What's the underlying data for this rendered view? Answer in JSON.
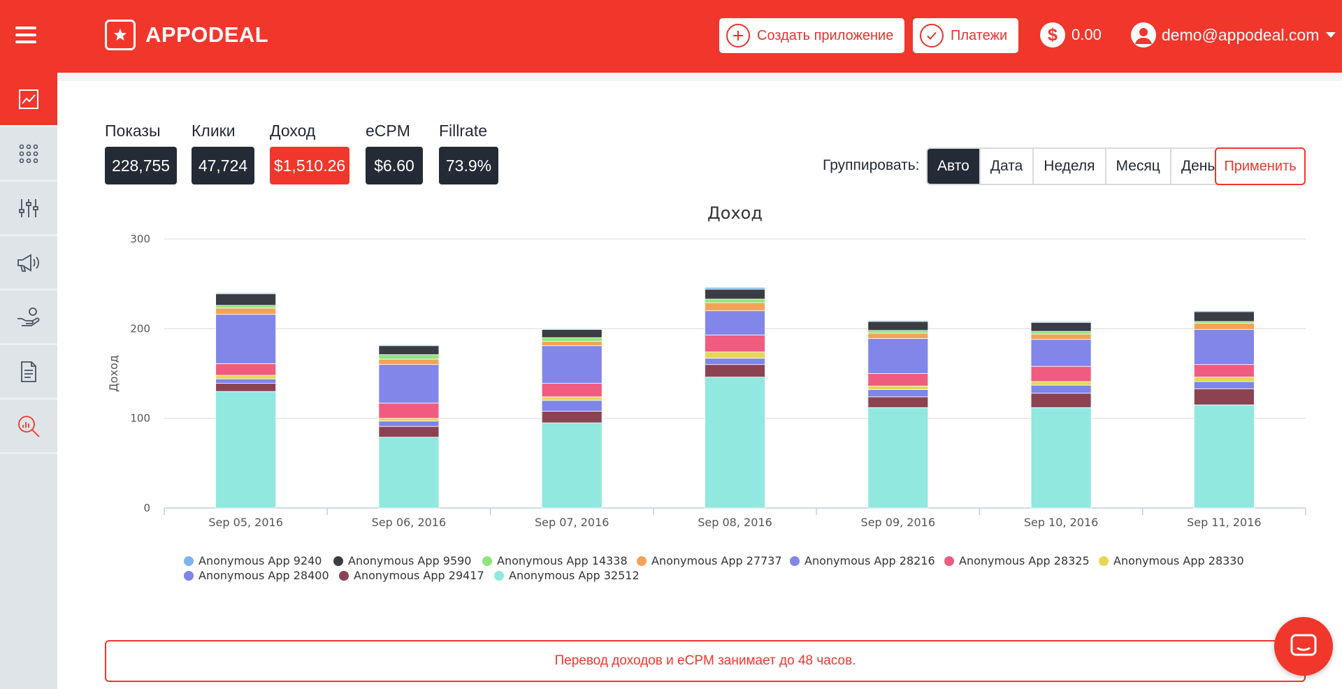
{
  "header": {
    "brand": "APPODEAL",
    "create_app_label": "Создать приложение",
    "payments_label": "Платежи",
    "balance": "0.00",
    "balance_symbol": "$",
    "user_email": "demo@appodeal.com"
  },
  "sidebar": {
    "items": [
      {
        "icon": "line-chart-icon",
        "active": true
      },
      {
        "icon": "apps-grid-icon"
      },
      {
        "icon": "sliders-icon"
      },
      {
        "icon": "megaphone-icon"
      },
      {
        "icon": "payout-hand-icon"
      },
      {
        "icon": "document-icon"
      },
      {
        "icon": "search-analytics-icon"
      }
    ]
  },
  "metrics": [
    {
      "label": "Показы",
      "value": "228,755"
    },
    {
      "label": "Клики",
      "value": "47,724"
    },
    {
      "label": "Доход",
      "value": "$1,510.26"
    },
    {
      "label": "eCPM",
      "value": "$6.60"
    },
    {
      "label": "Fillrate",
      "value": "73.9%"
    }
  ],
  "group": {
    "label": "Группировать:",
    "options": [
      "Авто",
      "Дата",
      "Неделя",
      "Месяц",
      "День"
    ],
    "selected": "Авто",
    "apply_label": "Применить"
  },
  "notice": "Перевод доходов и eCPM занимает до 48 часов.",
  "colors": {
    "brand": "#f1362b",
    "dark": "#242b36"
  },
  "chart_data": {
    "type": "bar",
    "stacked": true,
    "title": "Доход",
    "ylabel": "Доход",
    "xlabel": "",
    "ylim": [
      0,
      300
    ],
    "yticks": [
      0,
      100,
      200,
      300
    ],
    "categories": [
      "Sep 05, 2016",
      "Sep 06, 2016",
      "Sep 07, 2016",
      "Sep 08, 2016",
      "Sep 09, 2016",
      "Sep 10, 2016",
      "Sep 11, 2016"
    ],
    "series": [
      {
        "name": "Anonymous App 32512",
        "color": "#90e8df",
        "values": [
          130,
          79,
          95,
          146,
          112,
          112,
          115
        ]
      },
      {
        "name": "Anonymous App 29417",
        "color": "#8b4352",
        "values": [
          9,
          12,
          13,
          14,
          12,
          16,
          18
        ]
      },
      {
        "name": "Anonymous App 28400",
        "color": "#7d85e6",
        "values": [
          5,
          6,
          12,
          7,
          8,
          9,
          8
        ]
      },
      {
        "name": "Anonymous App 28330",
        "color": "#e4d851",
        "values": [
          4,
          3,
          4,
          7,
          4,
          4,
          5
        ]
      },
      {
        "name": "Anonymous App 28325",
        "color": "#f05c7f",
        "values": [
          13,
          17,
          15,
          19,
          14,
          17,
          14
        ]
      },
      {
        "name": "Anonymous App 28216",
        "color": "#8186e8",
        "values": [
          55,
          43,
          42,
          27,
          39,
          30,
          39
        ]
      },
      {
        "name": "Anonymous App 27737",
        "color": "#f3a357",
        "values": [
          7,
          6,
          5,
          9,
          6,
          6,
          7
        ]
      },
      {
        "name": "Anonymous App 14338",
        "color": "#8ee57a",
        "values": [
          3,
          5,
          4,
          4,
          3,
          3,
          2
        ]
      },
      {
        "name": "Anonymous App 9590",
        "color": "#3a3d43",
        "values": [
          13,
          10,
          9,
          11,
          10,
          10,
          11
        ]
      },
      {
        "name": "Anonymous App 9240",
        "color": "#7cb5ec",
        "values": [
          1,
          1,
          1,
          2,
          1,
          1,
          1
        ]
      }
    ],
    "legend": [
      "Anonymous App 9240",
      "Anonymous App 9590",
      "Anonymous App 14338",
      "Anonymous App 27737",
      "Anonymous App 28216",
      "Anonymous App 28325",
      "Anonymous App 28330",
      "Anonymous App 28400",
      "Anonymous App 29417",
      "Anonymous App 32512"
    ]
  }
}
